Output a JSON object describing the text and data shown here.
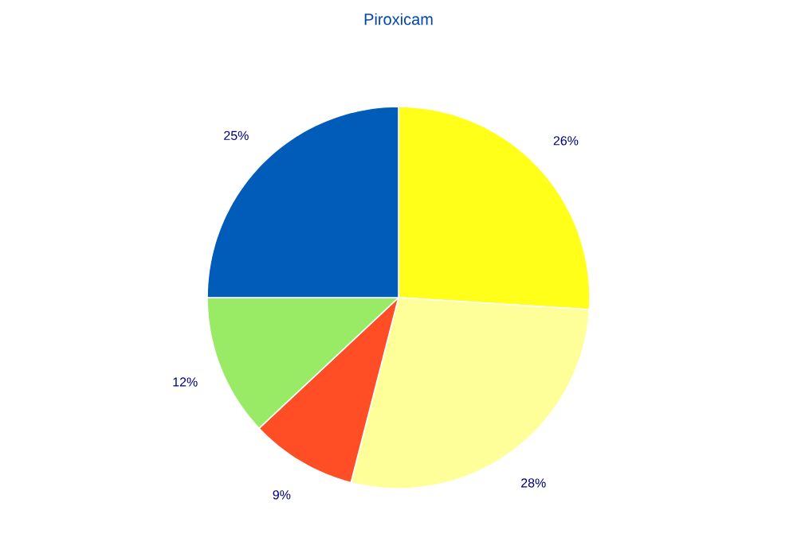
{
  "chart_data": {
    "type": "pie",
    "title": "Piroxicam",
    "categories": [
      null,
      null,
      null,
      null,
      null
    ],
    "values": [
      26,
      28,
      9,
      12,
      25
    ],
    "value_labels": [
      "26%",
      "28%",
      "9%",
      "12%",
      "25%"
    ],
    "colors": [
      "#ffff1a",
      "#ffff99",
      "#ff4d26",
      "#99eb66",
      "#005cb8"
    ]
  }
}
